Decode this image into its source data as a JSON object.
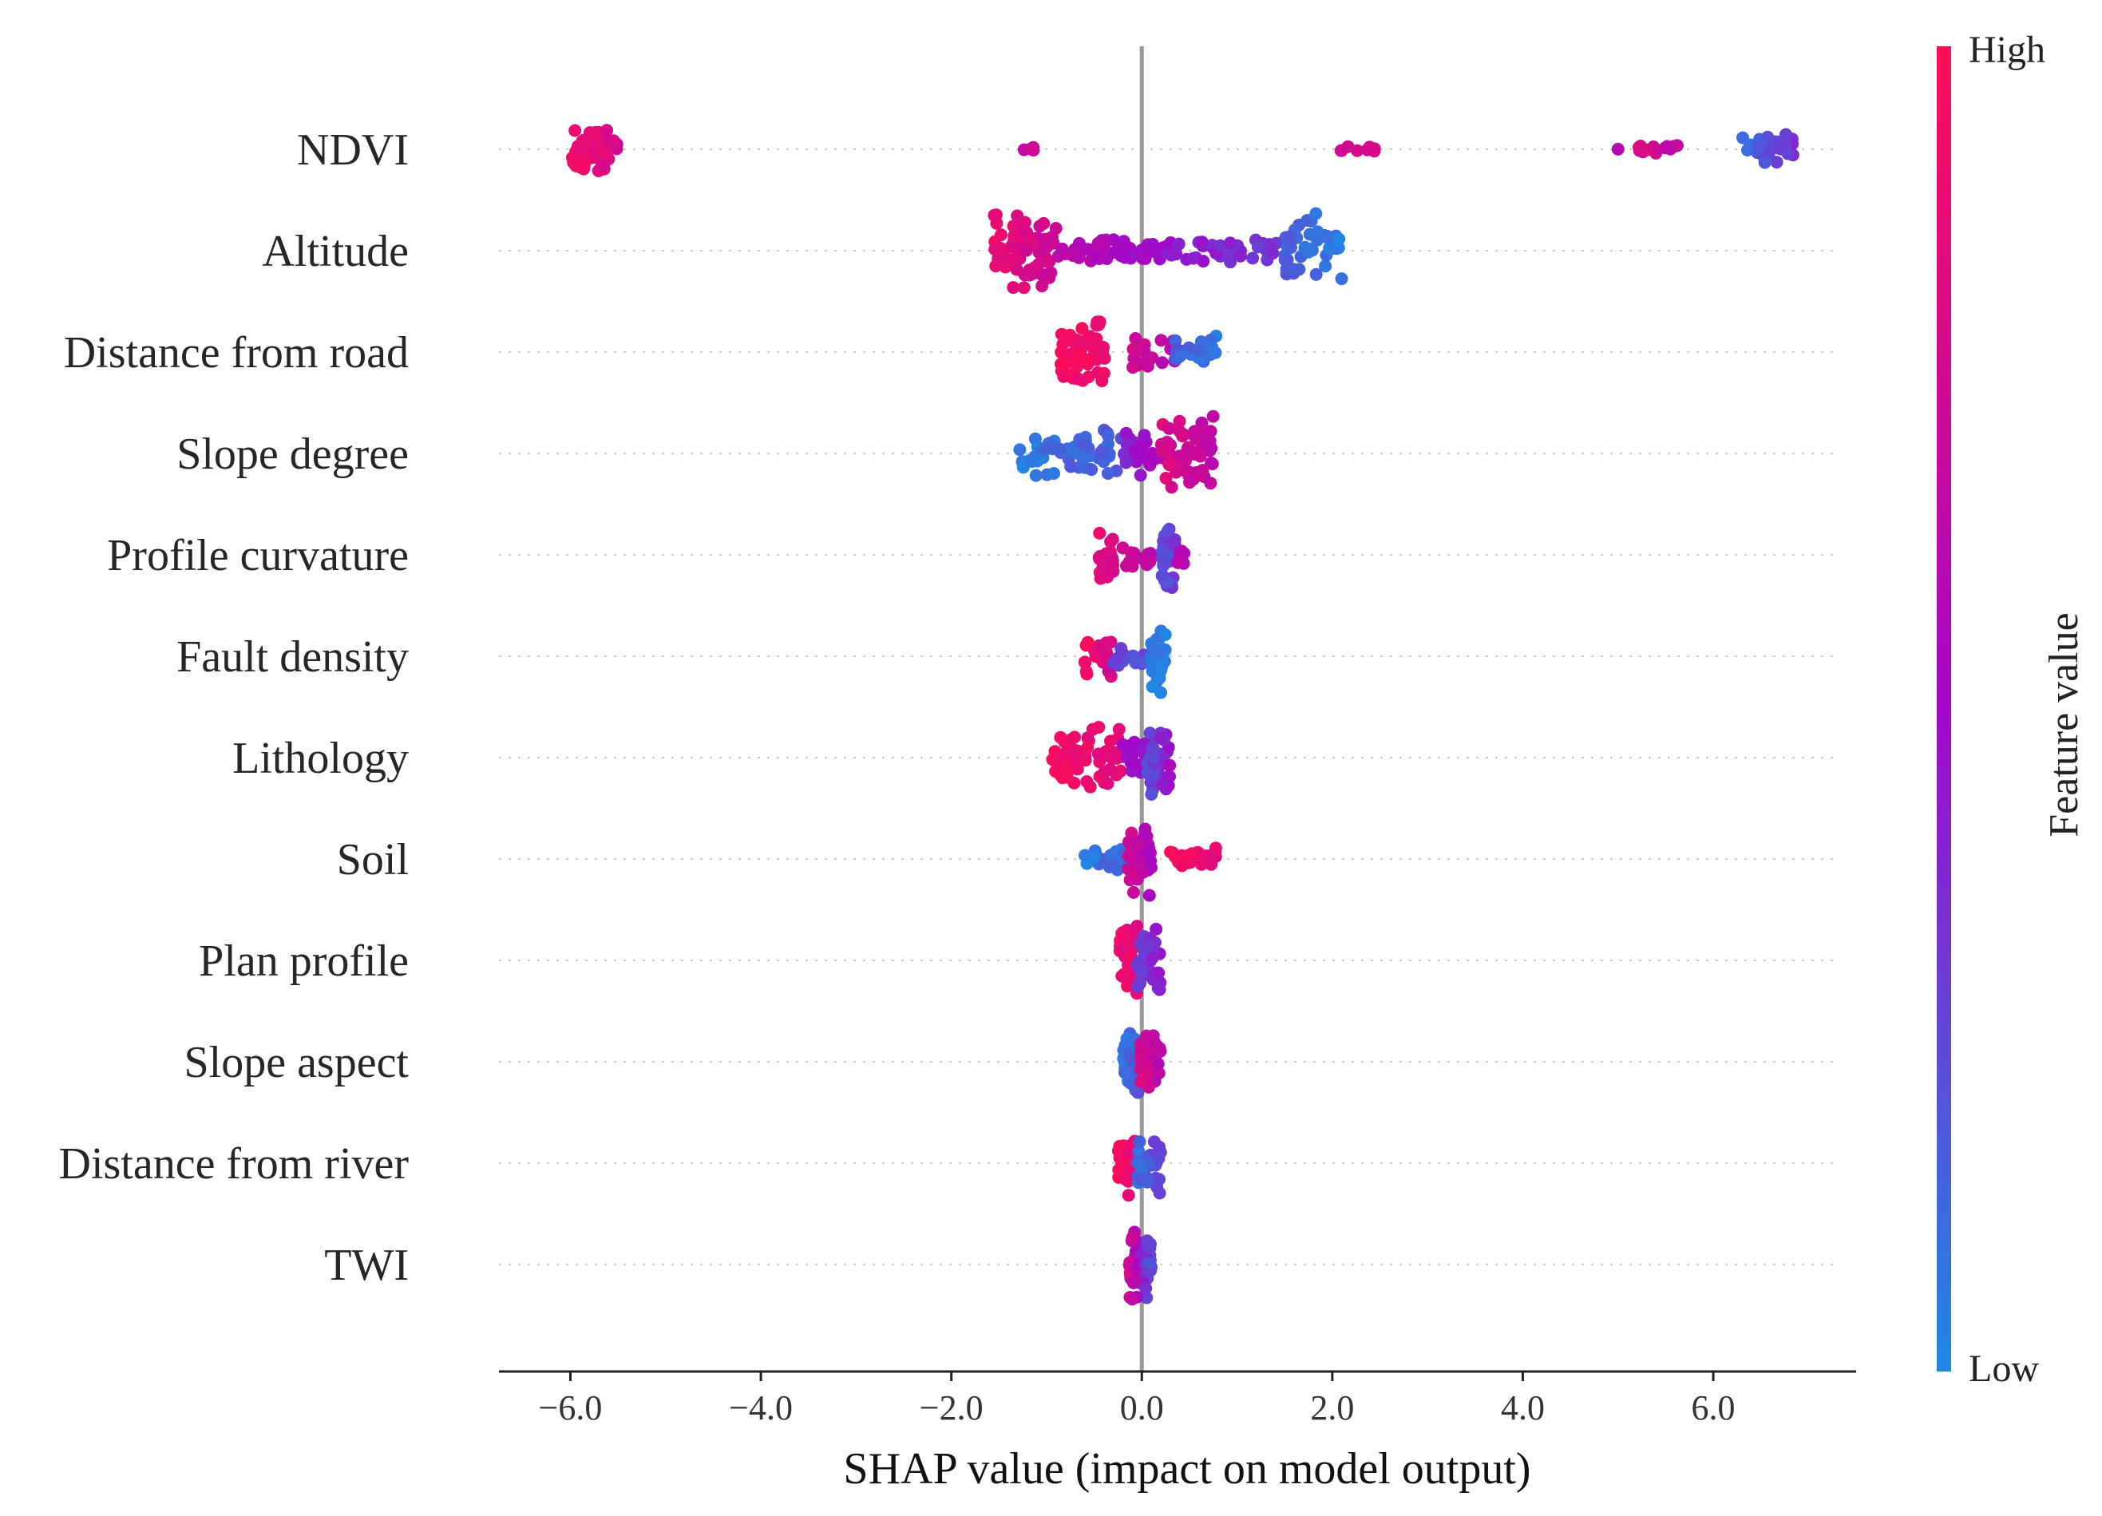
{
  "chart_data": {
    "type": "scatter",
    "subtype": "shap-beeswarm",
    "title": "",
    "xlabel": "SHAP value (impact on model output)",
    "ylabel": "",
    "xlim": [
      -6.75,
      7.5
    ],
    "xticks": [
      -6.0,
      -4.0,
      -2.0,
      0.0,
      2.0,
      4.0,
      6.0
    ],
    "xtick_labels": [
      "−6.0",
      "−4.0",
      "−2.0",
      "0.0",
      "2.0",
      "4.0",
      "6.0"
    ],
    "features": [
      "NDVI",
      "Altitude",
      "Distance from road",
      "Slope degree",
      "Profile curvature",
      "Fault density",
      "Lithology",
      "Soil",
      "Plan profile",
      "Slope aspect",
      "Distance from river",
      "TWI"
    ],
    "colorbar": {
      "title": "Feature value",
      "high_label": "High",
      "low_label": "Low",
      "high_color": "#ff0d57",
      "mid_color": "#a208c8",
      "low_color": "#1e88e5"
    },
    "series": [
      {
        "name": "NDVI",
        "clusters": [
          {
            "x": [
              -6.0,
              -5.5
            ],
            "v": [
              0.95,
              0.75
            ],
            "n": 70,
            "w": 0.6
          },
          {
            "x": [
              -1.3,
              -1.1
            ],
            "v": [
              0.7,
              0.7
            ],
            "n": 5,
            "w": 0.08
          },
          {
            "x": [
              2.05,
              2.45
            ],
            "v": [
              0.78,
              0.78
            ],
            "n": 10,
            "w": 0.08
          },
          {
            "x": [
              5.0,
              5.0
            ],
            "v": [
              0.6,
              0.6
            ],
            "n": 1,
            "w": 0.05
          },
          {
            "x": [
              5.2,
              5.65
            ],
            "v": [
              0.78,
              0.65
            ],
            "n": 16,
            "w": 0.12
          },
          {
            "x": [
              6.3,
              6.85
            ],
            "v": [
              0.1,
              0.35
            ],
            "n": 30,
            "w": 0.45
          }
        ]
      },
      {
        "name": "Altitude",
        "clusters": [
          {
            "x": [
              -1.55,
              -0.9
            ],
            "v": [
              0.9,
              0.7
            ],
            "n": 70,
            "w": 1.0
          },
          {
            "x": [
              -0.9,
              0.3
            ],
            "v": [
              0.65,
              0.45
            ],
            "n": 50,
            "w": 0.35
          },
          {
            "x": [
              0.3,
              1.5
            ],
            "v": [
              0.45,
              0.3
            ],
            "n": 40,
            "w": 0.3
          },
          {
            "x": [
              1.5,
              2.1
            ],
            "v": [
              0.15,
              0.05
            ],
            "n": 45,
            "w": 0.95
          }
        ]
      },
      {
        "name": "Distance from road",
        "clusters": [
          {
            "x": [
              -0.85,
              -0.35
            ],
            "v": [
              0.95,
              0.9
            ],
            "n": 55,
            "w": 1.0
          },
          {
            "x": [
              -0.1,
              0.35
            ],
            "v": [
              0.75,
              0.6
            ],
            "n": 20,
            "w": 0.45
          },
          {
            "x": [
              0.35,
              0.8
            ],
            "v": [
              0.15,
              0.05
            ],
            "n": 25,
            "w": 0.45
          }
        ]
      },
      {
        "name": "Slope degree",
        "clusters": [
          {
            "x": [
              -1.3,
              -0.2
            ],
            "v": [
              0.05,
              0.2
            ],
            "n": 55,
            "w": 0.6
          },
          {
            "x": [
              -0.2,
              0.2
            ],
            "v": [
              0.4,
              0.55
            ],
            "n": 25,
            "w": 0.7
          },
          {
            "x": [
              0.2,
              0.75
            ],
            "v": [
              0.8,
              0.65
            ],
            "n": 55,
            "w": 0.95
          }
        ]
      },
      {
        "name": "Profile curvature",
        "clusters": [
          {
            "x": [
              -0.45,
              -0.3
            ],
            "v": [
              0.85,
              0.8
            ],
            "n": 25,
            "w": 0.7
          },
          {
            "x": [
              -0.2,
              0.1
            ],
            "v": [
              0.7,
              0.65
            ],
            "n": 15,
            "w": 0.35
          },
          {
            "x": [
              0.2,
              0.35
            ],
            "v": [
              0.2,
              0.3
            ],
            "n": 35,
            "w": 1.0
          },
          {
            "x": [
              0.35,
              0.45
            ],
            "v": [
              0.6,
              0.6
            ],
            "n": 6,
            "w": 0.3
          }
        ]
      },
      {
        "name": "Fault density",
        "clusters": [
          {
            "x": [
              -0.6,
              -0.3
            ],
            "v": [
              0.95,
              0.75
            ],
            "n": 25,
            "w": 0.55
          },
          {
            "x": [
              -0.3,
              0.1
            ],
            "v": [
              0.3,
              0.2
            ],
            "n": 15,
            "w": 0.3
          },
          {
            "x": [
              0.1,
              0.25
            ],
            "v": [
              0.05,
              0.05
            ],
            "n": 40,
            "w": 1.0
          }
        ]
      },
      {
        "name": "Lithology",
        "clusters": [
          {
            "x": [
              -0.95,
              -0.2
            ],
            "v": [
              0.95,
              0.85
            ],
            "n": 55,
            "w": 0.85
          },
          {
            "x": [
              -0.2,
              0.05
            ],
            "v": [
              0.55,
              0.45
            ],
            "n": 20,
            "w": 0.6
          },
          {
            "x": [
              0.05,
              0.3
            ],
            "v": [
              0.2,
              0.5
            ],
            "n": 40,
            "w": 1.0
          }
        ]
      },
      {
        "name": "Soil",
        "clusters": [
          {
            "x": [
              -0.6,
              -0.15
            ],
            "v": [
              0.05,
              0.15
            ],
            "n": 25,
            "w": 0.3
          },
          {
            "x": [
              -0.15,
              0.1
            ],
            "v": [
              0.75,
              0.55
            ],
            "n": 45,
            "w": 1.0
          },
          {
            "x": [
              0.3,
              0.8
            ],
            "v": [
              0.95,
              0.85
            ],
            "n": 25,
            "w": 0.3
          }
        ]
      },
      {
        "name": "Plan profile",
        "clusters": [
          {
            "x": [
              -0.25,
              -0.05
            ],
            "v": [
              0.9,
              0.85
            ],
            "n": 35,
            "w": 1.0
          },
          {
            "x": [
              -0.05,
              0.2
            ],
            "v": [
              0.25,
              0.45
            ],
            "n": 40,
            "w": 0.8
          }
        ]
      },
      {
        "name": "Slope aspect",
        "clusters": [
          {
            "x": [
              -0.2,
              -0.02
            ],
            "v": [
              0.05,
              0.2
            ],
            "n": 35,
            "w": 1.0
          },
          {
            "x": [
              -0.02,
              0.2
            ],
            "v": [
              0.8,
              0.6
            ],
            "n": 40,
            "w": 0.9
          }
        ]
      },
      {
        "name": "Distance from river",
        "clusters": [
          {
            "x": [
              -0.25,
              -0.05
            ],
            "v": [
              0.95,
              0.85
            ],
            "n": 35,
            "w": 0.9
          },
          {
            "x": [
              -0.05,
              0.2
            ],
            "v": [
              0.1,
              0.3
            ],
            "n": 35,
            "w": 0.8
          }
        ]
      },
      {
        "name": "TWI",
        "clusters": [
          {
            "x": [
              -0.15,
              0.1
            ],
            "v": [
              0.8,
              0.2
            ],
            "n": 60,
            "w": 1.0
          }
        ]
      }
    ]
  }
}
